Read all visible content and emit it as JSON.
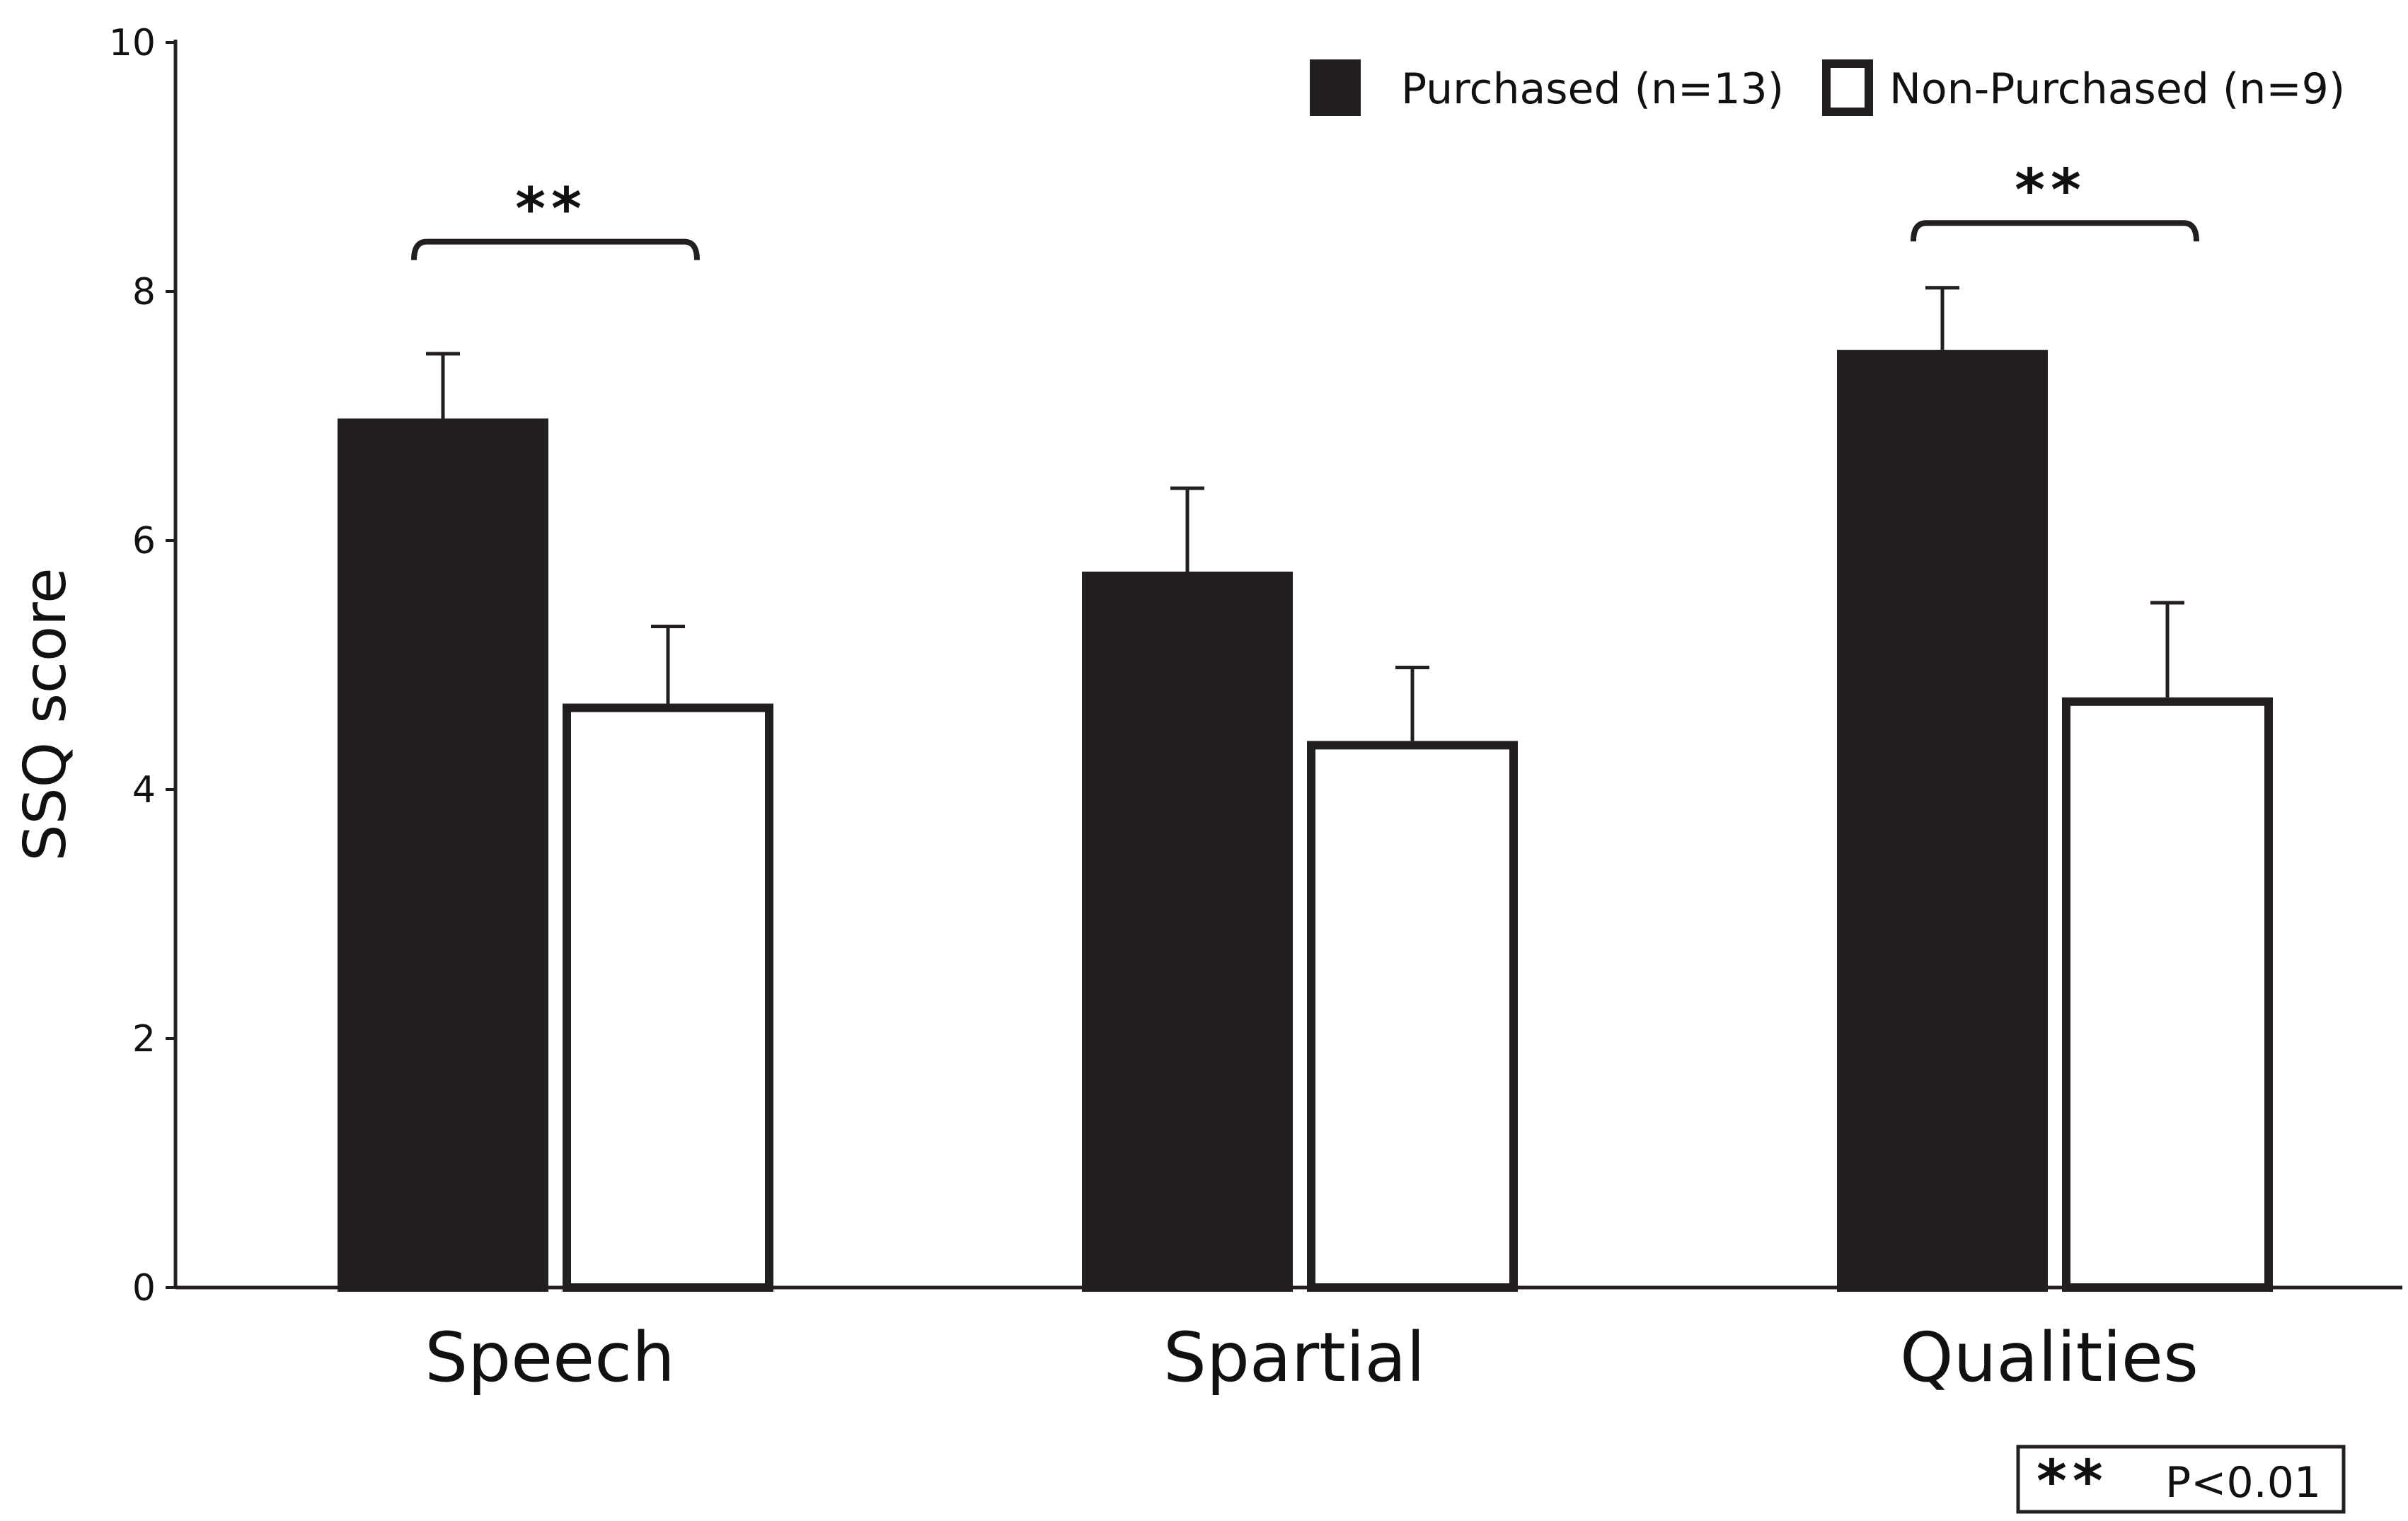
{
  "chart_data": {
    "type": "bar",
    "title": "",
    "xlabel": "",
    "ylabel": "SSQ  score",
    "ylim": [
      0,
      10
    ],
    "yticks": [
      0,
      2,
      4,
      6,
      8,
      10
    ],
    "grid": false,
    "legend_position": "top-right",
    "categories": [
      "Speech",
      "Spartial",
      "Qualities"
    ],
    "series": [
      {
        "name": "Purchased (n=13)",
        "fill": "#231f20",
        "values": [
          6.98,
          5.75,
          7.53
        ],
        "error": [
          0.52,
          0.67,
          0.5
        ]
      },
      {
        "name": "Non-Purchased (n=9)",
        "fill": "#ffffff",
        "values": [
          4.69,
          4.39,
          4.74
        ],
        "error": [
          0.62,
          0.59,
          0.76
        ]
      }
    ],
    "significance": [
      {
        "category_index": 0,
        "mark": "**",
        "bracket_y": 8.4
      },
      {
        "category_index": 2,
        "mark": "**",
        "bracket_y": 8.55
      }
    ],
    "note": {
      "mark": "**",
      "text": "P<0.01"
    }
  }
}
